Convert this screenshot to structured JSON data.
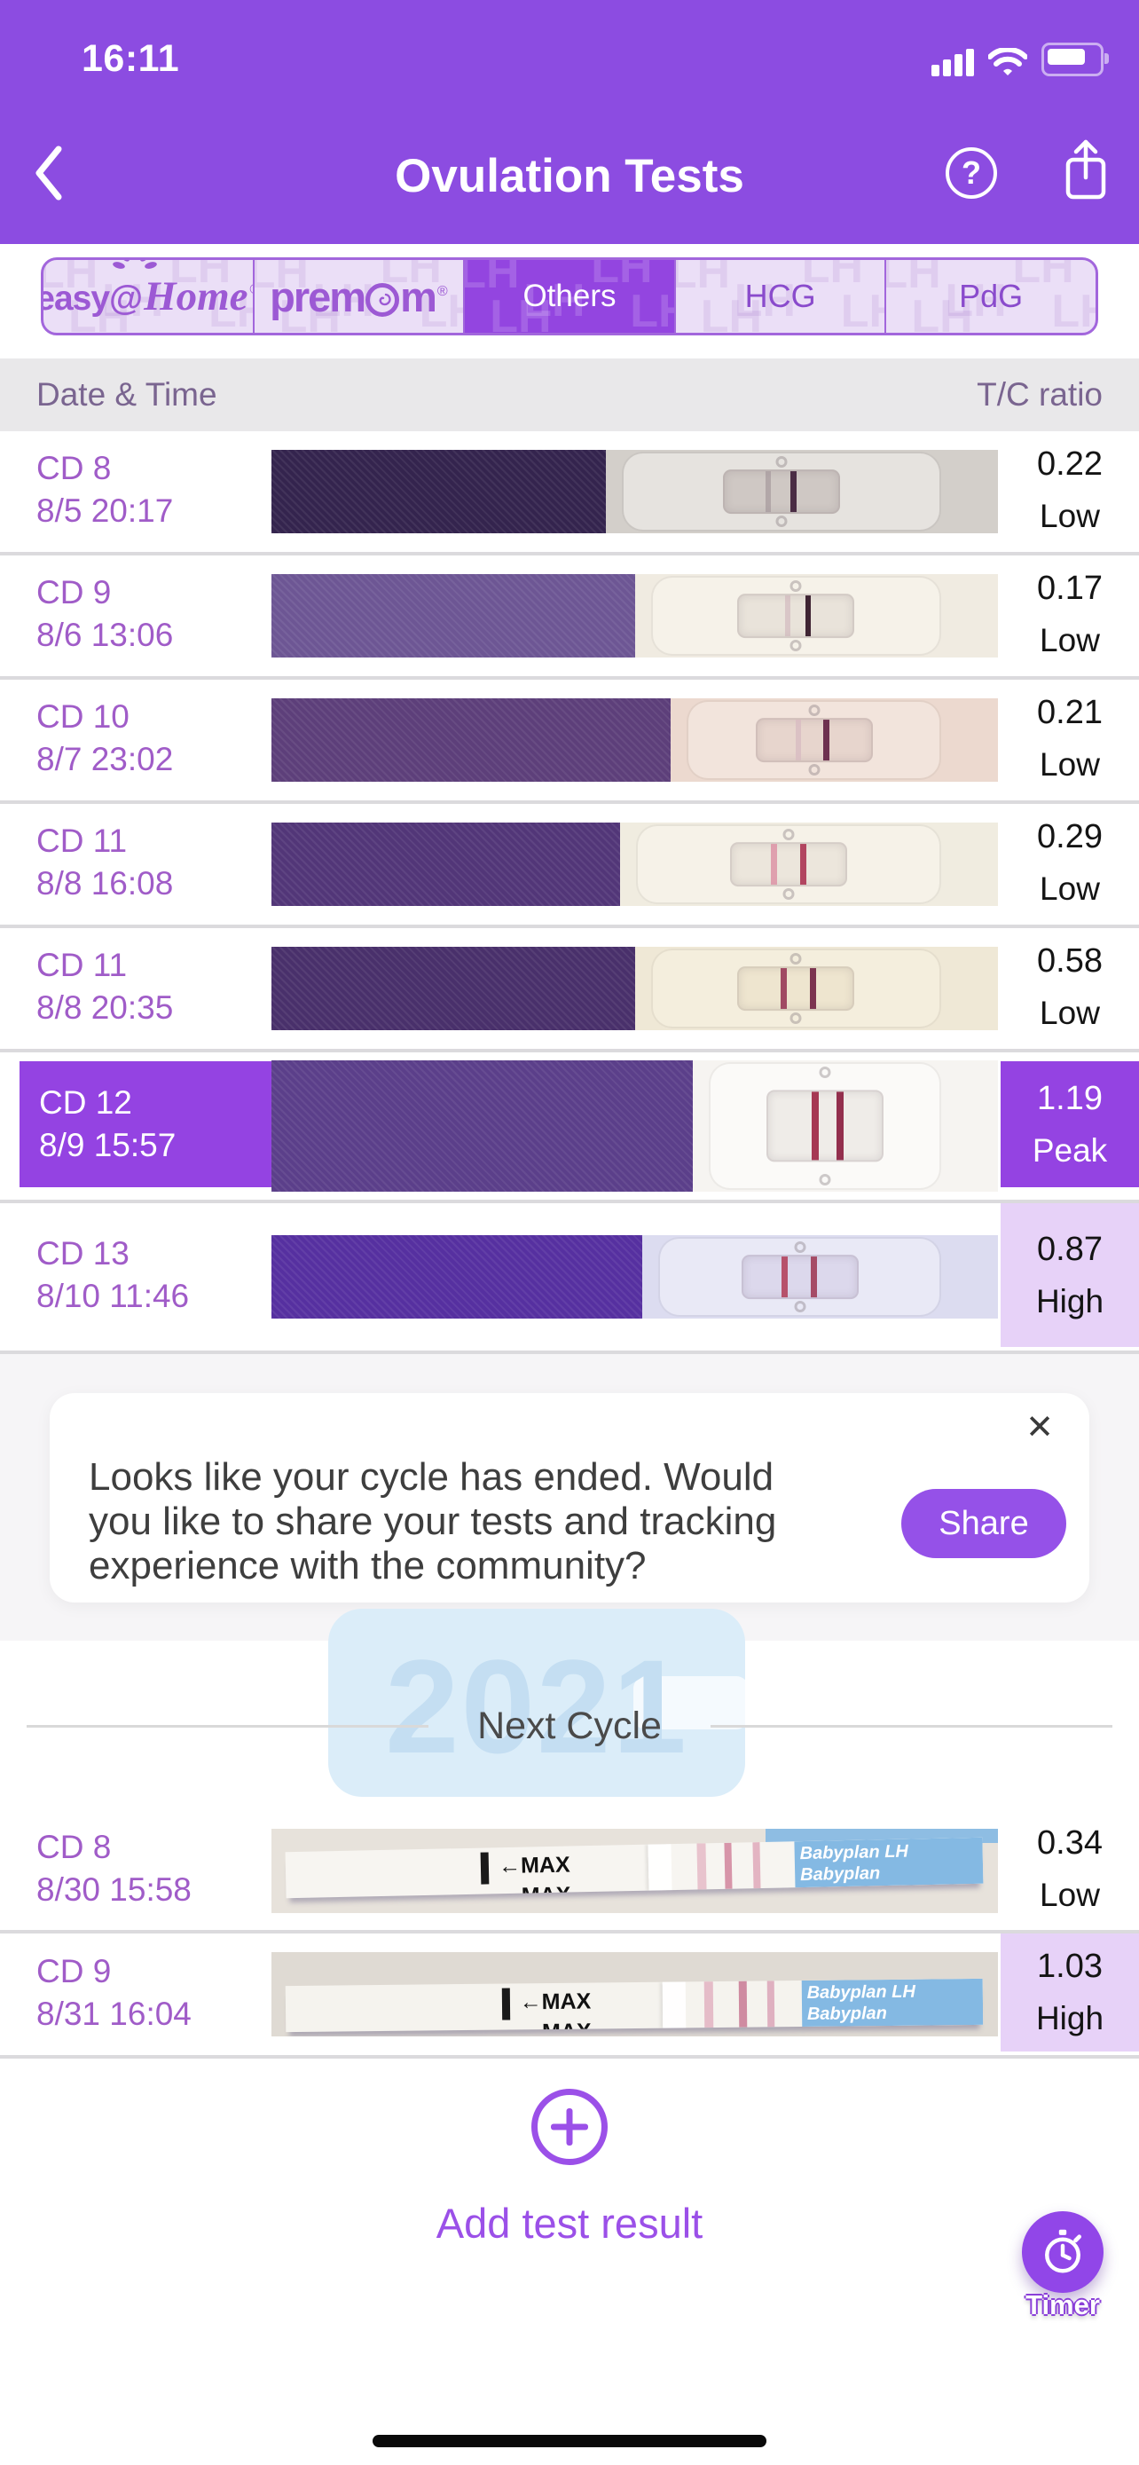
{
  "status_bar": {
    "time": "16:11"
  },
  "nav": {
    "title": "Ovulation Tests",
    "back_icon": "chevron-left",
    "help_icon": "question-circle",
    "share_icon": "share-export"
  },
  "tabs": [
    {
      "label": "easy@Home",
      "type": "logo-easyhome",
      "selected": false
    },
    {
      "label": "premom",
      "type": "logo-premom",
      "selected": false
    },
    {
      "label": "Others",
      "type": "text",
      "selected": true
    },
    {
      "label": "HCG",
      "type": "text",
      "selected": false
    },
    {
      "label": "PdG",
      "type": "text",
      "selected": false
    }
  ],
  "tabs_pattern_text": "LH",
  "table": {
    "col_date": "Date & Time",
    "col_ratio": "T/C ratio"
  },
  "rows1": [
    {
      "cd": "CD 8",
      "datetime": "8/5 20:17",
      "ratio": "0.22",
      "level": "Low",
      "highlight": "none",
      "h": 140,
      "photoH": 94,
      "photo": {
        "type": "cassette",
        "fw": "46%",
        "fabric": "#34244e",
        "bg": "#d3cfca",
        "body": "#e6e3df",
        "window": "#cfc8c4",
        "lines": [
          {
            "left": "36%",
            "color": "#9a8d92",
            "op": 0.55,
            "w": 6
          },
          {
            "left": "58%",
            "color": "#4a2c44",
            "op": 1,
            "w": 7
          }
        ]
      }
    },
    {
      "cd": "CD 9",
      "datetime": "8/6 13:06",
      "ratio": "0.17",
      "level": "Low",
      "highlight": "none",
      "h": 140,
      "photoH": 94,
      "photo": {
        "type": "cassette",
        "fw": "50%",
        "fabric": "#6d5694",
        "bg": "#f0ebe1",
        "body": "#f6f2e9",
        "window": "#e9e3da",
        "lines": [
          {
            "left": "40%",
            "color": "#caa9b4",
            "op": 0.5,
            "w": 6
          },
          {
            "left": "58%",
            "color": "#3f2433",
            "op": 1,
            "w": 6
          }
        ]
      }
    },
    {
      "cd": "CD 10",
      "datetime": "8/7 23:02",
      "ratio": "0.21",
      "level": "Low",
      "highlight": "none",
      "h": 140,
      "photoH": 94,
      "photo": {
        "type": "cassette",
        "fw": "55%",
        "fabric": "#5d3f7a",
        "bg": "#ecd9cf",
        "body": "#f2e4dc",
        "window": "#e7d5cd",
        "lines": [
          {
            "left": "34%",
            "color": "#d8bcc2",
            "op": 0.8,
            "w": 6
          },
          {
            "left": "58%",
            "color": "#6e3150",
            "op": 1,
            "w": 7
          }
        ]
      }
    },
    {
      "cd": "CD 11",
      "datetime": "8/8 16:08",
      "ratio": "0.29",
      "level": "Low",
      "highlight": "none",
      "h": 140,
      "photoH": 94,
      "photo": {
        "type": "cassette",
        "fw": "48%",
        "fabric": "#523678",
        "bg": "#f0ece0",
        "body": "#f6f2e8",
        "window": "#ece6dc",
        "lines": [
          {
            "left": "34%",
            "color": "#dd93a6",
            "op": 0.85,
            "w": 7
          },
          {
            "left": "60%",
            "color": "#b24560",
            "op": 1,
            "w": 7
          }
        ]
      }
    },
    {
      "cd": "CD 11",
      "datetime": "8/8 20:35",
      "ratio": "0.58",
      "level": "Low",
      "highlight": "none",
      "h": 140,
      "photoH": 94,
      "photo": {
        "type": "cassette",
        "fw": "50%",
        "fabric": "#49306b",
        "bg": "#efe8d6",
        "body": "#f4eedd",
        "window": "#eee5cf",
        "lines": [
          {
            "left": "36%",
            "color": "#a04a63",
            "op": 1,
            "w": 7
          },
          {
            "left": "62%",
            "color": "#7c3450",
            "op": 1,
            "w": 7
          }
        ]
      }
    },
    {
      "cd": "CD 12",
      "datetime": "8/9 15:57",
      "ratio": "1.19",
      "level": "Peak",
      "highlight": "peak",
      "h": 170,
      "photoH": 148,
      "photo": {
        "type": "cassette",
        "fw": "58%",
        "fabric": "#5b3f8a",
        "bg": "#f6f4f1",
        "body": "#fbfaf8",
        "window": "#efece8",
        "lines": [
          {
            "left": "38%",
            "color": "#a63853",
            "op": 1,
            "w": 8
          },
          {
            "left": "60%",
            "color": "#932f4d",
            "op": 1,
            "w": 8
          }
        ]
      }
    },
    {
      "cd": "CD 13",
      "datetime": "8/10 11:46",
      "ratio": "0.87",
      "level": "High",
      "highlight": "high",
      "h": 170,
      "photoH": 94,
      "photo": {
        "type": "cassette",
        "fw": "51%",
        "fabric": "#5630a0",
        "bg": "#dcdcf0",
        "body": "#e9e9f6",
        "window": "#dcd8ec",
        "lines": [
          {
            "left": "34%",
            "color": "#b44a64",
            "op": 0.95,
            "w": 7
          },
          {
            "left": "60%",
            "color": "#a03d58",
            "op": 0.9,
            "w": 7
          }
        ]
      }
    }
  ],
  "banner": {
    "message": "Looks like your cycle has ended. Would you like to share your tests and tracking experience with the community?",
    "share_label": "Share",
    "close_glyph": "✕"
  },
  "next_cycle": {
    "title": "Next Cycle",
    "watermark_year": "2021"
  },
  "rows2": [
    {
      "cd": "CD 8",
      "datetime": "8/30 15:58",
      "ratio": "0.34",
      "level": "Low",
      "highlight": "none",
      "h": 138,
      "photoH": 95,
      "photo": {
        "type": "strip",
        "bg": "#e7e2db",
        "strip": "#f7f5f1",
        "stripTop": 18,
        "rot": -1.2,
        "maxLeft": "28%",
        "notch": "52%",
        "pins": [
          {
            "l": "59%",
            "c": "#e8c3cd",
            "w": 10
          },
          {
            "l": "63%",
            "c": "#d795a9",
            "w": 8
          },
          {
            "l": "67%",
            "c": "#e3b4c2",
            "w": 8
          }
        ],
        "blueLeft": "73%",
        "topSliver": true
      }
    },
    {
      "cd": "CD 9",
      "datetime": "8/31 16:04",
      "ratio": "1.03",
      "level": "High",
      "highlight": "high",
      "h": 141,
      "photoH": 95,
      "photo": {
        "type": "strip",
        "bg": "#dfdad3",
        "strip": "#f5f3ee",
        "stripTop": 34,
        "rot": -0.6,
        "maxLeft": "31%",
        "notch": "54%",
        "pins": [
          {
            "l": "60%",
            "c": "#e5bcc8",
            "w": 10
          },
          {
            "l": "65%",
            "c": "#cf8ba1",
            "w": 9
          },
          {
            "l": "69%",
            "c": "#dfb0c0",
            "w": 8
          }
        ],
        "blueLeft": "74%",
        "topSliver": false
      }
    }
  ],
  "strip_labels": {
    "max": "←MAX",
    "brand": "Babyplan",
    "brand_suffix": "LH"
  },
  "footer": {
    "add_label": "Add test result",
    "timer_label": "Timer"
  },
  "colors": {
    "header_purple": "#8C4CE1",
    "selected_purple": "#9345E0",
    "peak_purple": "#9443E2",
    "high_lavender": "#E7D2F8",
    "accent_purple": "#9B50E8",
    "date_text": "#A05CC8",
    "seg_border": "#A266DC",
    "seg_bg": "#EBDFF7",
    "thead_bg": "#E9E8EA",
    "thead_text": "#7A6590",
    "card_bg": "#FFFFFF",
    "card_section_bg": "#F6F5F7",
    "share_btn": "#9551E8",
    "watermark_blue": "#DBEDF9",
    "babyplan_blue": "#84B9E3"
  }
}
